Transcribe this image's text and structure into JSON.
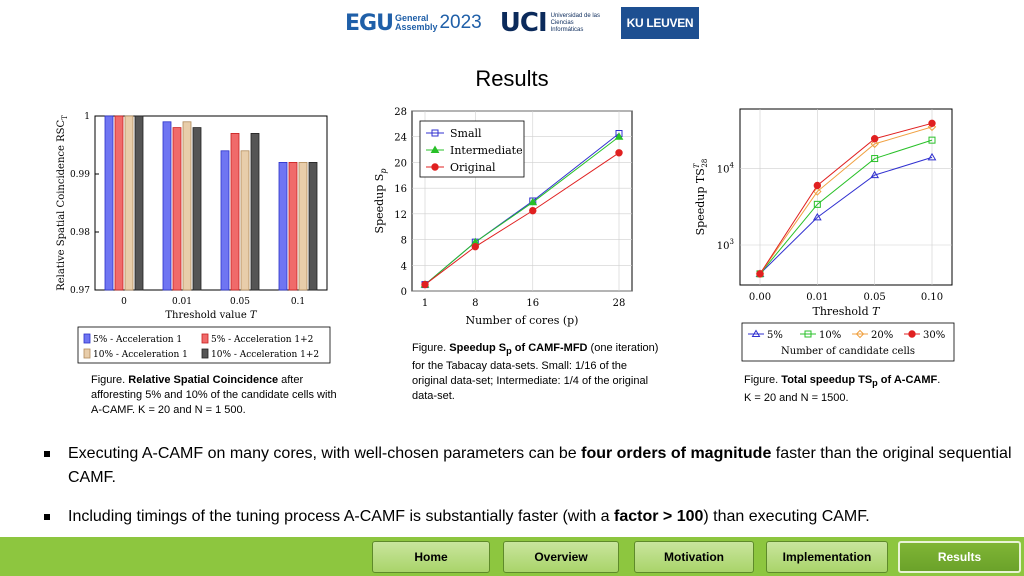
{
  "header": {
    "egu_mark": "EGU",
    "egu_ga_line1": "General",
    "egu_ga_line2": "Assembly",
    "egu_year": "2023",
    "uci_mark": "UCI",
    "uci_text": "Universidad de las Ciencias Informáticas",
    "kul_text": "KU LEUVEN"
  },
  "title": "Results",
  "charts": {
    "rsc": {
      "ylabel": "Relative Spatial Coincidence RSC",
      "ylabel_sub": "T",
      "xlabel": "Threshold value T",
      "legend": [
        "5% - Acceleration 1",
        "5% - Acceleration 1+2",
        "10% - Acceleration 1",
        "10% - Acceleration 1+2"
      ],
      "colors": [
        "#6f75f2",
        "#f06a6a",
        "#e8cdaa",
        "#555555"
      ],
      "borders": [
        "#2b31c8",
        "#c82020",
        "#b08a5b",
        "#222222"
      ]
    },
    "speedup": {
      "ylabel": "Speedup S",
      "ylabel_sub": "p",
      "xlabel": "Number of cores (p)",
      "legend": [
        "Small",
        "Intermediate",
        "Original"
      ],
      "colors": [
        "#3030d0",
        "#28c028",
        "#e02020"
      ]
    },
    "total": {
      "ylabel": "Speedup TS",
      "ylabel_sup": "T",
      "ylabel_sub": "28",
      "xlabel": "Threshold T",
      "legend_title": "Number of candidate cells",
      "legend": [
        "5%",
        "10%",
        "20%",
        "30%"
      ],
      "colors": [
        "#3030d0",
        "#28c028",
        "#f0a040",
        "#e02020"
      ]
    }
  },
  "chart_data": [
    {
      "type": "bar",
      "categories": [
        "0",
        "0.01",
        "0.05",
        "0.1"
      ],
      "xlabel": "Threshold value T",
      "ylabel": "Relative Spatial Coincidence RSC_T",
      "ylim": [
        0.97,
        1.0
      ],
      "yticks": [
        0.97,
        0.98,
        0.99,
        1
      ],
      "series": [
        {
          "name": "5% - Acceleration 1",
          "values": [
            1.0,
            0.999,
            0.994,
            0.992
          ]
        },
        {
          "name": "5% - Acceleration 1+2",
          "values": [
            1.0,
            0.998,
            0.997,
            0.992
          ]
        },
        {
          "name": "10% - Acceleration 1",
          "values": [
            1.0,
            0.999,
            0.994,
            0.992
          ]
        },
        {
          "name": "10% - Acceleration 1+2",
          "values": [
            1.0,
            0.998,
            0.997,
            0.992
          ]
        }
      ],
      "legend": "bottom"
    },
    {
      "type": "line",
      "x": [
        1,
        8,
        16,
        28
      ],
      "xlabel": "Number of cores (p)",
      "ylabel": "Speedup S_p",
      "ylim": [
        0,
        28
      ],
      "yticks": [
        0,
        4,
        8,
        12,
        16,
        20,
        24,
        28
      ],
      "series": [
        {
          "name": "Small",
          "values": [
            1,
            7.6,
            14,
            24.5
          ]
        },
        {
          "name": "Intermediate",
          "values": [
            1,
            7.6,
            13.8,
            24
          ]
        },
        {
          "name": "Original",
          "values": [
            1,
            6.9,
            12.5,
            21.5
          ]
        }
      ],
      "legend": "top-left",
      "grid": true
    },
    {
      "type": "line",
      "x": [
        0.0,
        0.01,
        0.05,
        0.1
      ],
      "xticks": [
        "0.00",
        "0.01",
        "0.05",
        "0.10"
      ],
      "xlabel": "Threshold T",
      "ylabel": "Speedup TS^T_28",
      "yscale": "log",
      "ylim": [
        300,
        60000
      ],
      "yticks": [
        "10^3",
        "10^4"
      ],
      "series": [
        {
          "name": "5%",
          "values": [
            420,
            2300,
            8200,
            14000
          ]
        },
        {
          "name": "10%",
          "values": [
            420,
            3400,
            13500,
            23500
          ]
        },
        {
          "name": "20%",
          "values": [
            420,
            5000,
            21000,
            35000
          ]
        },
        {
          "name": "30%",
          "values": [
            420,
            6000,
            24500,
            39000
          ]
        }
      ],
      "legend": "bottom",
      "grid": true
    }
  ],
  "captions": {
    "rsc": {
      "pre": "Figure. ",
      "bold": "Relative Spatial Coincidence",
      "post": " after afforesting 5% and 10% of the candidate cells with A-CAMF. K = 20 and N = 1 500."
    },
    "speedup": {
      "pre": "Figure. ",
      "bold": "Speedup S",
      "bold_sub": "p",
      "bold2": " of CAMF-MFD",
      "post": " (one iteration) for the Tabacay data-sets. Small: 1/16 of the original data-set; Intermediate: 1/4 of the original data-set."
    },
    "total": {
      "pre": "Figure. ",
      "bold": "Total speedup TS",
      "bold_sub": "p",
      "bold2": " of A-CAMF",
      "post": ". K = 20 and N = 1500."
    }
  },
  "bullets": [
    {
      "pre": "Executing A-CAMF on many cores, with well-chosen parameters can be ",
      "bold": "four orders of magnitude",
      "post": " faster than the original sequential CAMF."
    },
    {
      "pre": "Including timings of the tuning process A-CAMF is substantially faster (with a ",
      "bold": "factor > 100",
      "post": ") than executing CAMF."
    }
  ],
  "nav": [
    "Home",
    "Overview",
    "Motivation",
    "Implementation",
    "Results"
  ],
  "nav_active": "Results"
}
